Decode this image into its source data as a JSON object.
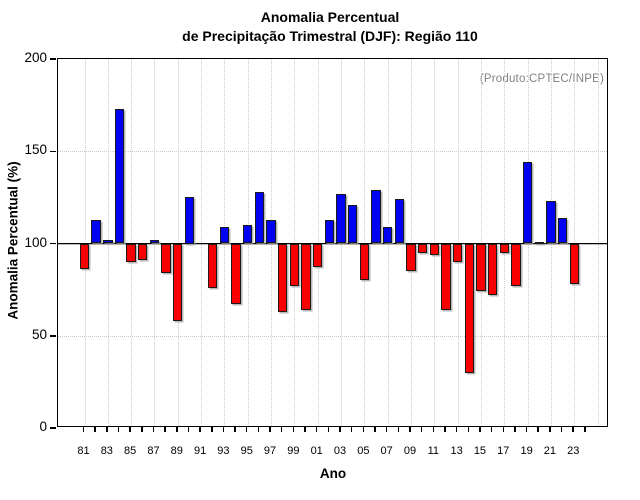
{
  "title": {
    "line1": "Anomalia Percentual",
    "line2": "de Precipitação Trimestral (DJF): Região 110"
  },
  "annotation": "(Produto:CPTEC/INPE)",
  "chart_data": {
    "type": "bar",
    "title": "Anomalia Percentual de Precipitação Trimestral (DJF): Região 110",
    "xlabel": "Ano",
    "ylabel": "Anomalia Percentual (%)",
    "ylim": [
      0,
      200
    ],
    "yticks": [
      0,
      50,
      100,
      150,
      200
    ],
    "baseline": 100,
    "grid": {
      "horizontal_dotted_at": [
        50,
        150
      ],
      "vertical_dotted_every_2_years": true
    },
    "legend": "none",
    "colors": {
      "above_baseline": "#0202f2",
      "below_baseline": "#f80000",
      "annotation_gray": "#828282"
    },
    "categories": [
      "81",
      "82",
      "83",
      "84",
      "85",
      "86",
      "87",
      "88",
      "89",
      "90",
      "91",
      "92",
      "93",
      "94",
      "95",
      "96",
      "97",
      "98",
      "99",
      "00",
      "01",
      "02",
      "03",
      "04",
      "05",
      "06",
      "07",
      "08",
      "09",
      "10",
      "11",
      "12",
      "13",
      "14",
      "15",
      "16",
      "17",
      "18",
      "19",
      "20",
      "21",
      "22",
      "23"
    ],
    "xtick_labels": [
      "81",
      "83",
      "85",
      "87",
      "89",
      "91",
      "93",
      "95",
      "97",
      "99",
      "01",
      "03",
      "05",
      "07",
      "09",
      "11",
      "13",
      "15",
      "17",
      "19",
      "21",
      "23"
    ],
    "values": [
      86,
      113,
      102,
      173,
      90,
      91,
      102,
      84,
      58,
      125,
      100,
      76,
      109,
      67,
      110,
      128,
      113,
      63,
      77,
      64,
      87,
      113,
      127,
      121,
      80,
      129,
      109,
      124,
      85,
      95,
      94,
      64,
      90,
      30,
      74,
      72,
      95,
      77,
      144,
      101,
      123,
      114,
      78
    ]
  }
}
